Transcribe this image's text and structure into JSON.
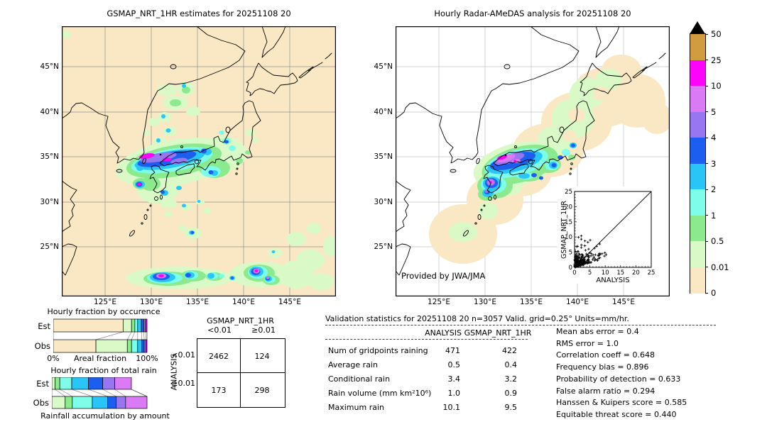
{
  "palette": {
    "cream": "#f9e8c3",
    "pale": "#d9fac6",
    "green": "#8aea8d",
    "aqua": "#7dfdea",
    "cyan": "#29c5f6",
    "blue": "#1c5ef0",
    "purple": "#9876f2",
    "orchid": "#da7af4",
    "magenta": "#fa05fa",
    "tan": "#d09c3f"
  },
  "left_map": {
    "title": "GSMAP_NRT_1HR estimates for 20251108 20"
  },
  "right_map": {
    "title": "Hourly Radar-AMeDAS analysis for 20251108 20",
    "credit": "Provided by JWA/JMA"
  },
  "axis": {
    "lat": [
      "45°N",
      "40°N",
      "35°N",
      "30°N",
      "25°N"
    ],
    "lon": [
      "125°E",
      "130°E",
      "135°E",
      "140°E",
      "145°E"
    ]
  },
  "colorbar": {
    "tick_labels": [
      "50",
      "25",
      "10",
      "5",
      "4",
      "3",
      "2",
      "1",
      "0.5",
      "0.01",
      "0"
    ],
    "colors": [
      "tan",
      "magenta",
      "orchid",
      "purple",
      "blue",
      "cyan",
      "aqua",
      "green",
      "pale",
      "cream"
    ]
  },
  "inset": {
    "xlabel": "ANALYSIS",
    "ylabel": "GSMAP_NRT_1HR",
    "ticks": [
      "0",
      "5",
      "10",
      "15",
      "20",
      "25"
    ]
  },
  "occurrence": {
    "title": "Hourly fraction by occurence",
    "row_labels": [
      "Est",
      "Obs"
    ],
    "axis_left": "0%",
    "axis_center": "Areal fraction",
    "axis_right": "100%",
    "est": [
      {
        "c": "cream",
        "f": 0.745
      },
      {
        "c": "pale",
        "f": 0.09
      },
      {
        "c": "green",
        "f": 0.035
      },
      {
        "c": "aqua",
        "f": 0.03
      },
      {
        "c": "cyan",
        "f": 0.04
      },
      {
        "c": "blue",
        "f": 0.025
      },
      {
        "c": "purple",
        "f": 0.02
      },
      {
        "c": "magenta",
        "f": 0.015
      }
    ],
    "obs": [
      {
        "c": "cream",
        "f": 0.455
      },
      {
        "c": "pale",
        "f": 0.335
      },
      {
        "c": "green",
        "f": 0.045
      },
      {
        "c": "aqua",
        "f": 0.065
      },
      {
        "c": "cyan",
        "f": 0.045
      },
      {
        "c": "blue",
        "f": 0.025
      },
      {
        "c": "purple",
        "f": 0.02
      },
      {
        "c": "magenta",
        "f": 0.01
      }
    ]
  },
  "totalrain": {
    "title": "Hourly fraction of total rain",
    "row_labels": [
      "Est",
      "Obs"
    ],
    "caption": "Rainfall accumulation by amount",
    "est": [
      {
        "c": "pale",
        "f": 0.04
      },
      {
        "c": "green",
        "f": 0.06
      },
      {
        "c": "aqua",
        "f": 0.15
      },
      {
        "c": "cyan",
        "f": 0.21
      },
      {
        "c": "blue",
        "f": 0.18
      },
      {
        "c": "purple",
        "f": 0.15
      },
      {
        "c": "orchid",
        "f": 0.21
      }
    ],
    "obs": [
      {
        "c": "pale",
        "f": 0.14
      },
      {
        "c": "green",
        "f": 0.075
      },
      {
        "c": "aqua",
        "f": 0.21
      },
      {
        "c": "cyan",
        "f": 0.16
      },
      {
        "c": "blue",
        "f": 0.09
      },
      {
        "c": "purple",
        "f": 0.1
      },
      {
        "c": "orchid",
        "f": 0.225
      }
    ]
  },
  "contingency": {
    "col_title": "GSMAP_NRT_1HR",
    "row_title": "ANALYSIS",
    "col_labels": [
      "<0.01",
      "≥0.01"
    ],
    "row_labels": [
      "<0.01",
      "≥0.01"
    ],
    "values": [
      [
        "2462",
        "124"
      ],
      [
        "173",
        "298"
      ]
    ]
  },
  "stats": {
    "header": "Validation statistics for 20251108 20  n=3057 Valid. grid=0.25° Units=mm/hr.",
    "columns": [
      "ANALYSIS",
      "GSMAP_NRT_1HR"
    ],
    "rows": [
      {
        "label": "Num of gridpoints raining",
        "analysis": "471",
        "gsmap": "422"
      },
      {
        "label": "Average rain",
        "analysis": "0.5",
        "gsmap": "0.4"
      },
      {
        "label": "Conditional rain",
        "analysis": "3.4",
        "gsmap": "3.2"
      },
      {
        "label": "Rain volume (mm km²10⁶)",
        "analysis": "1.0",
        "gsmap": "0.9"
      },
      {
        "label": "Maximum rain",
        "analysis": "10.1",
        "gsmap": "9.5"
      }
    ],
    "metrics": [
      {
        "label": "Mean abs error =",
        "value": "0.4"
      },
      {
        "label": "RMS error =",
        "value": "1.0"
      },
      {
        "label": "Correlation coeff =",
        "value": "0.648"
      },
      {
        "label": "Frequency bias =",
        "value": "0.896"
      },
      {
        "label": "Probability of detection =",
        "value": "0.633"
      },
      {
        "label": "False alarm ratio =",
        "value": "0.294"
      },
      {
        "label": "Hanssen & Kuipers score =",
        "value": "0.585"
      },
      {
        "label": "Equitable threat score =",
        "value": "0.440"
      }
    ]
  },
  "chart_data": [
    {
      "type": "heatmap",
      "title": "GSMAP_NRT_1HR estimates for 20251108 20",
      "x_ticks": [
        "125°E",
        "130°E",
        "135°E",
        "140°E",
        "145°E"
      ],
      "y_ticks": [
        "45°N",
        "40°N",
        "35°N",
        "30°N",
        "25°N"
      ],
      "scale_mm_hr": [
        0,
        0.01,
        0.5,
        1,
        2,
        3,
        4,
        5,
        10,
        25,
        50
      ],
      "note": "Precipitation band 1-25+ mm/hr over western/central Japan (~33-36N,128-138E); second band with >10 mm/hr cores near 20-22N,130-142E; scattered light rain over Sea of Japan."
    },
    {
      "type": "heatmap",
      "title": "Hourly Radar-AMeDAS analysis for 20251108 20",
      "x_ticks": [
        "125°E",
        "130°E",
        "135°E",
        "140°E",
        "145°E"
      ],
      "y_ticks": [
        "45°N",
        "40°N",
        "35°N",
        "30°N",
        "25°N"
      ],
      "scale_mm_hr": [
        0,
        0.01,
        0.5,
        1,
        2,
        3,
        4,
        5,
        10,
        25,
        50
      ],
      "note": "Radar coverage swath (0-0.5 mm/hr shading) along Japanese archipelago from Okinawa to Hokkaido; rain band 1-25+ mm/hr over western Japan similar to GSMaP."
    },
    {
      "type": "scatter",
      "xlabel": "ANALYSIS",
      "ylabel": "GSMAP_NRT_1HR",
      "xlim": [
        0,
        25
      ],
      "ylim": [
        0,
        25
      ],
      "note": "Dense cluster of points between 0 and ~10 mm/hr around 1:1 line."
    },
    {
      "type": "bar",
      "title": "Hourly fraction by occurence",
      "categories": [
        "Est",
        "Obs"
      ],
      "series": [
        {
          "name": "Est",
          "values": [
            0.745,
            0.09,
            0.035,
            0.03,
            0.04,
            0.025,
            0.02,
            0.015
          ]
        },
        {
          "name": "Obs",
          "values": [
            0.455,
            0.335,
            0.045,
            0.065,
            0.045,
            0.025,
            0.02,
            0.01
          ]
        }
      ],
      "xlabel": "Areal fraction",
      "xlim": [
        0,
        1
      ]
    },
    {
      "type": "bar",
      "title": "Hourly fraction of total rain",
      "categories": [
        "Est",
        "Obs"
      ],
      "series": [
        {
          "name": "Est",
          "values": [
            0.04,
            0.06,
            0.15,
            0.21,
            0.18,
            0.15,
            0.21
          ]
        },
        {
          "name": "Obs",
          "values": [
            0.14,
            0.075,
            0.21,
            0.16,
            0.09,
            0.1,
            0.225
          ]
        }
      ],
      "xlabel": "Rainfall accumulation by amount"
    },
    {
      "type": "table",
      "title": "Contingency table",
      "columns": [
        "<0.01",
        "≥0.01"
      ],
      "rows": [
        "<0.01",
        "≥0.01"
      ],
      "values": [
        [
          2462,
          124
        ],
        [
          173,
          298
        ]
      ]
    },
    {
      "type": "table",
      "title": "Validation statistics",
      "rows": [
        [
          "Num of gridpoints raining",
          471,
          422
        ],
        [
          "Average rain",
          0.5,
          0.4
        ],
        [
          "Conditional rain",
          3.4,
          3.2
        ],
        [
          "Rain volume (mm km²10⁶)",
          1.0,
          0.9
        ],
        [
          "Maximum rain",
          10.1,
          9.5
        ]
      ],
      "metrics": {
        "mean_abs_error": 0.4,
        "rms_error": 1.0,
        "correlation_coeff": 0.648,
        "frequency_bias": 0.896,
        "probability_of_detection": 0.633,
        "false_alarm_ratio": 0.294,
        "hanssen_kuipers_score": 0.585,
        "equitable_threat_score": 0.44
      }
    }
  ]
}
